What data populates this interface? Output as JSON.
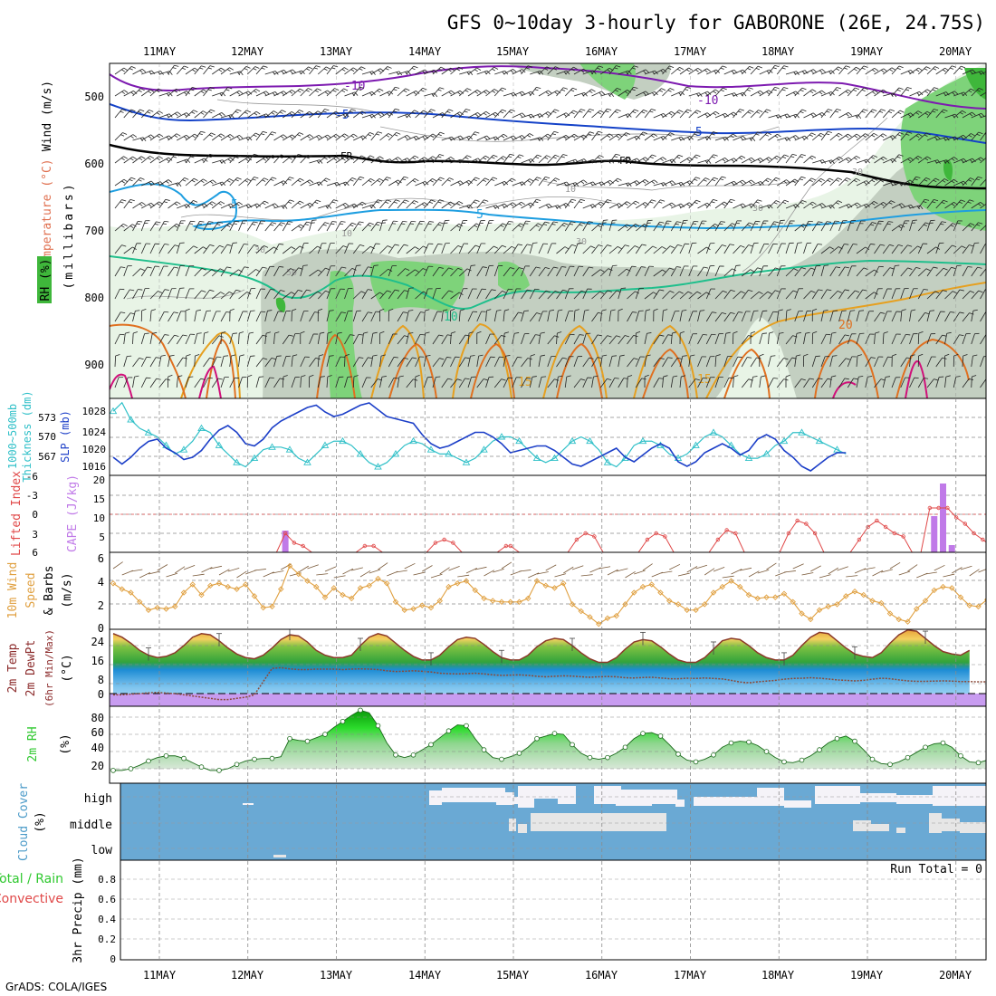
{
  "title": "GFS 0~10day 3-hourly for GABORONE (26E, 24.75S)",
  "footer": "GrADS: COLA/IGES",
  "dates": [
    "11MAY",
    "12MAY",
    "13MAY",
    "14MAY",
    "15MAY",
    "16MAY",
    "17MAY",
    "18MAY",
    "19MAY",
    "20MAY"
  ],
  "colors": {
    "rh_light": "#e8f4e6",
    "rh_mid": "#c3cfc1",
    "rh_green": "#7ed37a",
    "rh_dark": "#3fb73b",
    "purple": "#7d1ab0",
    "blue": "#1442c8",
    "cyan": "#1e9ee0",
    "teal": "#1fbf8c",
    "orange": "#e6a020",
    "darkorange": "#e07020",
    "magenta": "#d0107a",
    "slp": "#1c3fc8",
    "thick": "#30c0c8",
    "cape": "#c07ae8",
    "li": "#e04848",
    "wind": "#e0a040",
    "cloud": "#6aa9d4",
    "rh2m": "#2ec82e"
  },
  "panels": {
    "upper": {
      "ylabel_lines": [
        {
          "text": "Wind (m/s)",
          "color": "#000000"
        },
        {
          "text": "Temperature (°C)",
          "color": "#e07050"
        },
        {
          "text": "(millibars)",
          "color": "#000000"
        },
        {
          "text": "RH (%)",
          "color": "#000000"
        }
      ],
      "yticks": [
        "500",
        "600",
        "700",
        "800",
        "900"
      ],
      "contour_labels": [
        {
          "text": "-10",
          "color": "#7d1ab0"
        },
        {
          "text": "-10",
          "color": "#7d1ab0"
        },
        {
          "text": "-5",
          "color": "#1442c8"
        },
        {
          "text": "-5",
          "color": "#1442c8"
        },
        {
          "text": "FR",
          "color": "#000000"
        },
        {
          "text": "FR",
          "color": "#000000"
        },
        {
          "text": "5",
          "color": "#1e9ee0"
        },
        {
          "text": "5",
          "color": "#1e9ee0"
        },
        {
          "text": "10",
          "color": "#1fbf8c"
        },
        {
          "text": "15",
          "color": "#e6a020"
        },
        {
          "text": "15",
          "color": "#e6a020"
        },
        {
          "text": "20",
          "color": "#e07020"
        },
        {
          "text": "30",
          "color": "#999999"
        },
        {
          "text": "30",
          "color": "#999999"
        },
        {
          "text": "30",
          "color": "#999999"
        },
        {
          "text": "30",
          "color": "#999999"
        },
        {
          "text": "50",
          "color": "#999999"
        },
        {
          "text": "10",
          "color": "#999999"
        },
        {
          "text": "10",
          "color": "#999999"
        }
      ]
    },
    "slp": {
      "ylabel_left": [
        "1000~500mb",
        "Thickness (dm)"
      ],
      "ylabel_right": "SLP (mb)",
      "yticks_left": [
        "573",
        "570",
        "567"
      ],
      "yticks_right": [
        "1028",
        "1024",
        "1020",
        "1016"
      ]
    },
    "cape": {
      "ylabel_left": "Lifted Index",
      "ylabel_right": "CAPE (J/kg)",
      "yticks_left": [
        "-6",
        "-3",
        "0",
        "3",
        "6"
      ],
      "yticks_right": [
        "20",
        "15",
        "10",
        "5"
      ]
    },
    "wind10m": {
      "ylabel": [
        "10m Wind",
        "Speed",
        "& Barbs",
        "(m/s)"
      ],
      "yticks": [
        "6",
        "4",
        "2",
        "0"
      ]
    },
    "temp2m": {
      "ylabel": [
        "2m Temp",
        "2m DewPt",
        "(6hr Min/Max)",
        "(°C)"
      ],
      "yticks": [
        "24",
        "16",
        "8",
        "0"
      ]
    },
    "rh2m": {
      "ylabel": [
        "2m RH",
        "(%)"
      ],
      "yticks": [
        "80",
        "60",
        "40",
        "20"
      ]
    },
    "cloud": {
      "ylabel": [
        "Cloud Cover",
        "(%)"
      ],
      "levels": [
        "high",
        "middle",
        "low"
      ]
    },
    "precip": {
      "ylabel": [
        "Total / Rain",
        "Convective",
        "3hr Precip (mm)"
      ],
      "yticks": [
        "0.8",
        "0.6",
        "0.4",
        "0.2",
        "0"
      ],
      "run_total": "Run Total = 0"
    }
  },
  "chart_data": [
    {
      "type": "line",
      "title": "1000~500mb Thickness (dm) / SLP (mb)",
      "series": [
        {
          "name": "SLP (mb)",
          "axis_range": [
            1014,
            1031
          ],
          "values": [
            1018,
            1016.5,
            1018,
            1020,
            1021.5,
            1022,
            1020,
            1019,
            1017.5,
            1018,
            1019.5,
            1022,
            1024,
            1025,
            1023.5,
            1021,
            1020.5,
            1022,
            1024.5,
            1026,
            1027,
            1028,
            1029,
            1029.5,
            1028,
            1027,
            1027.5,
            1028.5,
            1029.5,
            1030,
            1028.5,
            1027,
            1026.5,
            1026,
            1025.5,
            1023,
            1021,
            1020,
            1020.5,
            1021.5,
            1022.5,
            1023.5,
            1023.5,
            1022.5,
            1021,
            1019,
            1019.5,
            1020,
            1020.5,
            1020.5,
            1019.5,
            1018,
            1016.5,
            1016,
            1017,
            1018,
            1019,
            1020,
            1018,
            1017,
            1018.5,
            1020,
            1021,
            1020,
            1017,
            1016,
            1017,
            1019,
            1020,
            1021,
            1020,
            1018.5,
            1019.5,
            1022,
            1023,
            1022,
            1019.5,
            1018,
            1016,
            1015,
            1016.5,
            1018,
            1019,
            1019
          ]
        },
        {
          "name": "1000~500mb Thickness (dm)",
          "axis_range": [
            565.5,
            574.5
          ],
          "values": [
            573,
            574,
            572,
            571,
            570.5,
            570,
            569,
            568,
            568.5,
            569.5,
            571,
            570.5,
            569,
            568,
            567,
            566.5,
            567.5,
            568.5,
            568.8,
            568.8,
            568.5,
            567.5,
            567,
            568,
            569,
            569.5,
            569.5,
            569,
            568,
            567,
            566.5,
            567,
            568,
            569,
            569.5,
            569.2,
            568.5,
            568,
            568,
            567.5,
            567,
            567.5,
            568.5,
            569.5,
            570,
            570,
            569.5,
            568.5,
            567.5,
            567,
            567.5,
            568.5,
            569.5,
            570,
            569.5,
            568.5,
            567,
            566.5,
            567.5,
            569,
            569.5,
            569.5,
            569,
            568,
            567.5,
            568,
            569,
            570,
            570.5,
            570,
            569,
            568,
            567.5,
            567.5,
            568,
            569,
            569.5,
            570.5,
            570.5,
            570,
            569.5,
            569,
            568.5,
            568
          ]
        }
      ]
    },
    {
      "type": "bar",
      "title": "CAPE (J/kg) / Lifted Index",
      "ylim": [
        0,
        20
      ],
      "cape_bars": [
        {
          "x": 19.5,
          "value": 6
        },
        {
          "x": 93,
          "value": 10
        },
        {
          "x": 94,
          "value": 19
        },
        {
          "x": 95,
          "value": 2
        }
      ],
      "lifted_index": [
        {
          "x": 19.5,
          "value": 3
        },
        {
          "x": 20.5,
          "value": 4.5
        },
        {
          "x": 21.5,
          "value": 5
        },
        {
          "x": 28.5,
          "value": 5
        },
        {
          "x": 29.5,
          "value": 5
        },
        {
          "x": 36.5,
          "value": 4.5
        },
        {
          "x": 37.5,
          "value": 4
        },
        {
          "x": 38.5,
          "value": 4.5
        },
        {
          "x": 44.5,
          "value": 5
        },
        {
          "x": 45,
          "value": 5
        },
        {
          "x": 52.5,
          "value": 4
        },
        {
          "x": 53.5,
          "value": 3
        },
        {
          "x": 54.5,
          "value": 3.5
        },
        {
          "x": 60.5,
          "value": 4
        },
        {
          "x": 61.5,
          "value": 3
        },
        {
          "x": 62.5,
          "value": 3.5
        },
        {
          "x": 68.5,
          "value": 4
        },
        {
          "x": 69.5,
          "value": 2.5
        },
        {
          "x": 70.5,
          "value": 3
        },
        {
          "x": 76.5,
          "value": 3
        },
        {
          "x": 77.5,
          "value": 1
        },
        {
          "x": 78.5,
          "value": 1.5
        },
        {
          "x": 79.5,
          "value": 3
        },
        {
          "x": 84.5,
          "value": 4
        },
        {
          "x": 85.5,
          "value": 2
        },
        {
          "x": 86.5,
          "value": 1
        },
        {
          "x": 87.5,
          "value": 2
        },
        {
          "x": 88.5,
          "value": 3
        },
        {
          "x": 89.5,
          "value": 3.5
        },
        {
          "x": 92.5,
          "value": -1
        },
        {
          "x": 93.5,
          "value": -1
        },
        {
          "x": 94.5,
          "value": -1
        },
        {
          "x": 95.5,
          "value": 0.5
        },
        {
          "x": 96.5,
          "value": 1.5
        },
        {
          "x": 97.5,
          "value": 3
        },
        {
          "x": 98.5,
          "value": 4
        },
        {
          "x": 99.5,
          "value": 5
        },
        {
          "x": 100.5,
          "value": 3
        },
        {
          "x": 101,
          "value": 1
        }
      ]
    },
    {
      "type": "line",
      "title": "10m Wind Speed (m/s)",
      "ylim": [
        0,
        6
      ],
      "series": [
        {
          "name": "speed",
          "values": [
            3.8,
            3.3,
            3.0,
            2.2,
            1.5,
            1.7,
            1.6,
            1.8,
            3.0,
            3.7,
            2.8,
            3.6,
            3.8,
            3.5,
            3.3,
            3.7,
            2.7,
            1.7,
            1.8,
            3.3,
            5.3,
            4.6,
            4.0,
            3.5,
            2.6,
            3.4,
            2.8,
            2.5,
            3.4,
            3.6,
            4.2,
            3.8,
            2.2,
            1.5,
            1.6,
            1.9,
            1.7,
            2.3,
            3.5,
            3.8,
            4.0,
            3.2,
            2.5,
            2.3,
            2.2,
            2.2,
            2.2,
            2.5,
            4.0,
            3.6,
            3.4,
            3.8,
            2.0,
            1.4,
            0.9,
            0.3,
            0.8,
            1.0,
            2.0,
            3.0,
            3.5,
            3.7,
            3.0,
            2.3,
            2.0,
            1.5,
            1.5,
            2.0,
            3.0,
            3.5,
            4.0,
            3.5,
            2.8,
            2.5,
            2.6,
            2.6,
            2.9,
            2.2,
            1.2,
            0.7,
            1.5,
            1.8,
            2.0,
            2.7,
            3.1,
            2.8,
            2.3,
            2.1,
            1.2,
            0.7,
            0.5,
            1.6,
            2.3,
            3.2,
            3.5,
            3.4,
            2.6,
            1.9,
            1.8,
            2.4,
            3.3,
            4.8
          ]
        }
      ]
    },
    {
      "type": "area",
      "title": "2m Temp / 2m DewPt (°C)",
      "ylim": [
        -3,
        28
      ],
      "series": [
        {
          "name": "2m Temp",
          "values": [
            25,
            23.5,
            21,
            18,
            16,
            15,
            15.5,
            17,
            20,
            23.5,
            25,
            24.5,
            22,
            19,
            16.5,
            15,
            14.5,
            16,
            19,
            22.5,
            24.5,
            24,
            21.5,
            18,
            16,
            15,
            15,
            16,
            20,
            23.5,
            25,
            24,
            21,
            18,
            15.5,
            14,
            14,
            16,
            19.5,
            22.5,
            23.5,
            23,
            20.5,
            17.5,
            15,
            14,
            14,
            16,
            19.5,
            22,
            23,
            22.5,
            20,
            17,
            14.5,
            13,
            13,
            15,
            18.5,
            21.5,
            22.5,
            22,
            19.5,
            16.5,
            14,
            13,
            13,
            15,
            18.5,
            22,
            23,
            22.5,
            20,
            17,
            15,
            14,
            14,
            16,
            20,
            23.5,
            25.5,
            25,
            22,
            19,
            16.5,
            15.5,
            15,
            17,
            21,
            24.5,
            26.5,
            26,
            23,
            20,
            17.5,
            16.5,
            16,
            18
          ]
        },
        {
          "name": "2m DewPt",
          "values": [
            -0.5,
            -0.5,
            -0.2,
            0,
            0.3,
            0.5,
            0.2,
            0,
            -0.5,
            -1,
            -1.5,
            -2,
            -2.5,
            -2.5,
            -2,
            -1.5,
            -0.5,
            5,
            10.5,
            10.8,
            10.3,
            10,
            10,
            10.2,
            10.2,
            10.2,
            10,
            10.2,
            10.3,
            10.2,
            10,
            9.5,
            9.2,
            9.3,
            9.5,
            9.3,
            9,
            8.5,
            8.3,
            8.2,
            8.3,
            8.5,
            8.2,
            7.8,
            7.6,
            7.7,
            7.8,
            7.6,
            7.2,
            7,
            7.2,
            7.4,
            7.3,
            7,
            6.8,
            7,
            7.1,
            7,
            6.6,
            6.5,
            6.7,
            6.8,
            6.5,
            6.2,
            6.2,
            6.4,
            6.3,
            6.5,
            6.3,
            6.1,
            5.5,
            4.8,
            4.5,
            4.9,
            5.2,
            5.5,
            6,
            6.3,
            6.4,
            6.6,
            6.4,
            6.1,
            5.7,
            5.5,
            5.3,
            5.5,
            6,
            6.4,
            6.2,
            5.7,
            5.3,
            5.1,
            5.1,
            5.2,
            5.3,
            5.2,
            5,
            5,
            4.9,
            4.9,
            5.1
          ]
        }
      ]
    },
    {
      "type": "area",
      "title": "2m RH (%)",
      "ylim": [
        10,
        92
      ],
      "series": [
        {
          "name": "2m RH",
          "values": [
            18,
            18,
            20,
            24,
            29,
            33,
            35,
            35,
            32,
            27,
            22,
            18,
            18,
            20,
            25,
            29,
            31,
            32,
            32,
            34,
            55,
            53,
            52,
            56,
            60,
            68,
            75,
            82,
            88,
            85,
            70,
            50,
            36,
            33,
            36,
            42,
            48,
            56,
            64,
            71,
            70,
            55,
            42,
            33,
            31,
            34,
            38,
            45,
            55,
            58,
            61,
            60,
            48,
            38,
            33,
            31,
            33,
            38,
            45,
            55,
            61,
            62,
            58,
            48,
            37,
            30,
            28,
            31,
            36,
            45,
            50,
            52,
            51,
            47,
            40,
            33,
            28,
            27,
            30,
            35,
            42,
            50,
            55,
            58,
            52,
            42,
            31,
            26,
            25,
            28,
            33,
            39,
            45,
            49,
            50,
            45,
            35,
            28,
            27,
            30,
            33,
            36,
            38,
            39
          ]
        }
      ]
    },
    {
      "type": "table",
      "title": "Cloud Cover (%)",
      "rows": [
        "high",
        "middle",
        "low"
      ],
      "note": "mostly overcast; patchy clear gaps at high/middle levels from 14MAY onward"
    },
    {
      "type": "bar",
      "title": "3hr Precip (mm)",
      "ylim": [
        0,
        0.9
      ],
      "values": []
    }
  ]
}
